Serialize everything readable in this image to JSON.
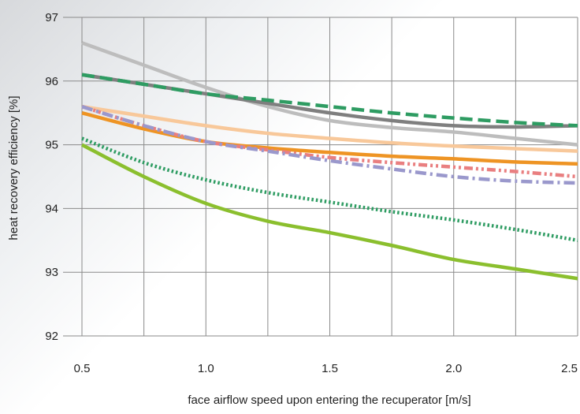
{
  "chart_data": {
    "type": "line",
    "xlabel": "face airflow speed upon entering the recuperator [m/s]",
    "ylabel": "heat recovery efficiency [%]",
    "xlim": [
      0.5,
      2.5
    ],
    "ylim": [
      92,
      97
    ],
    "x_ticks": [
      {
        "value": 0.5,
        "label": "0.5"
      },
      {
        "value": 1.0,
        "label": "1.0"
      },
      {
        "value": 1.5,
        "label": "1.5"
      },
      {
        "value": 2.0,
        "label": "2.0"
      },
      {
        "value": 2.5,
        "label": "2.5"
      }
    ],
    "y_ticks": [
      {
        "value": 92,
        "label": "92"
      },
      {
        "value": 93,
        "label": "93"
      },
      {
        "value": 94,
        "label": "94"
      },
      {
        "value": 95,
        "label": "95"
      },
      {
        "value": 96,
        "label": "96"
      },
      {
        "value": 97,
        "label": "97"
      }
    ],
    "grid": true,
    "series": [
      {
        "color": "#bdbdbd",
        "style": "solid",
        "x": [
          0.5,
          0.75,
          1.0,
          1.25,
          1.5,
          1.75,
          2.0,
          2.25,
          2.5
        ],
        "y": [
          96.6,
          96.25,
          95.9,
          95.6,
          95.38,
          95.27,
          95.2,
          95.1,
          95.0
        ]
      },
      {
        "color": "#7f7f7f",
        "style": "solid",
        "x": [
          0.5,
          0.75,
          1.0,
          1.25,
          1.5,
          1.75,
          2.0,
          2.25,
          2.5
        ],
        "y": [
          96.1,
          95.95,
          95.8,
          95.65,
          95.5,
          95.38,
          95.3,
          95.28,
          95.3
        ]
      },
      {
        "color": "#2e9c62",
        "style": "dashed",
        "x": [
          0.5,
          0.75,
          1.0,
          1.25,
          1.5,
          1.75,
          2.0,
          2.25,
          2.5
        ],
        "y": [
          96.1,
          95.95,
          95.8,
          95.7,
          95.6,
          95.5,
          95.42,
          95.35,
          95.3
        ]
      },
      {
        "color": "#f8c89a",
        "style": "solid",
        "x": [
          0.5,
          0.75,
          1.0,
          1.25,
          1.5,
          1.75,
          2.0,
          2.25,
          2.5
        ],
        "y": [
          95.6,
          95.45,
          95.3,
          95.18,
          95.1,
          95.03,
          94.98,
          94.94,
          94.9
        ]
      },
      {
        "color": "#ee9424",
        "style": "solid",
        "x": [
          0.5,
          0.75,
          1.0,
          1.25,
          1.5,
          1.75,
          2.0,
          2.25,
          2.5
        ],
        "y": [
          95.5,
          95.25,
          95.05,
          94.95,
          94.88,
          94.82,
          94.78,
          94.73,
          94.7
        ]
      },
      {
        "color": "#e97f80",
        "style": "dash-dot-dot",
        "x": [
          0.5,
          0.75,
          1.0,
          1.25,
          1.5,
          1.75,
          2.0,
          2.25,
          2.5
        ],
        "y": [
          95.6,
          95.3,
          95.05,
          94.92,
          94.8,
          94.72,
          94.65,
          94.58,
          94.5
        ]
      },
      {
        "color": "#9a98cc",
        "style": "dash-dot",
        "x": [
          0.5,
          0.75,
          1.0,
          1.25,
          1.5,
          1.75,
          2.0,
          2.25,
          2.5
        ],
        "y": [
          95.6,
          95.3,
          95.05,
          94.9,
          94.75,
          94.62,
          94.5,
          94.43,
          94.4
        ]
      },
      {
        "color": "#2e9c62",
        "style": "dotted",
        "x": [
          0.5,
          0.75,
          1.0,
          1.25,
          1.5,
          1.75,
          2.0,
          2.25,
          2.5
        ],
        "y": [
          95.1,
          94.72,
          94.45,
          94.25,
          94.1,
          93.95,
          93.82,
          93.67,
          93.5
        ]
      },
      {
        "color": "#8bbf2e",
        "style": "solid",
        "x": [
          0.5,
          0.75,
          1.0,
          1.25,
          1.5,
          1.75,
          2.0,
          2.25,
          2.5
        ],
        "y": [
          95.0,
          94.5,
          94.08,
          93.8,
          93.62,
          93.42,
          93.2,
          93.05,
          92.9
        ]
      }
    ]
  }
}
